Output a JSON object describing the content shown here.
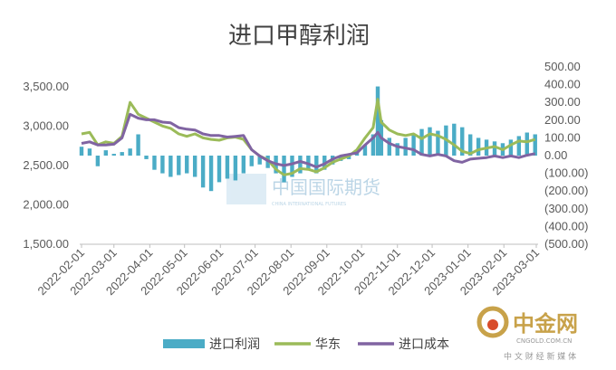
{
  "chart_data": {
    "type": "bar+line",
    "title": "进口甲醇利润",
    "left_axis": {
      "ylim": [
        1500,
        3750
      ],
      "ticks": [
        1500,
        2000,
        2500,
        3000,
        3500
      ],
      "tick_labels": [
        "1,500.00",
        "2,000.00",
        "2,500.00",
        "3,000.00",
        "3,500.00"
      ]
    },
    "right_axis": {
      "ylim": [
        -500,
        500
      ],
      "ticks": [
        500,
        400,
        300,
        200,
        100,
        0,
        -100,
        -200,
        -300,
        -400,
        -500
      ],
      "tick_labels": [
        "500.00",
        "400.00",
        "300.00",
        "200.00",
        "100.00",
        "0.00",
        "(100.00)",
        "(200.00)",
        "(300.00)",
        "(400.00)",
        "(500.00)"
      ]
    },
    "x_axis": {
      "start": "2022-02-01",
      "end": "2023-03-01",
      "tick_labels": [
        "2022-02-01",
        "2022-03-01",
        "2022-04-01",
        "2022-05-01",
        "2022-06-01",
        "2022-07-01",
        "2022-08-01",
        "2022-09-01",
        "2022-10-01",
        "2022-11-01",
        "2022-12-01",
        "2023-01-01",
        "2023-02-01",
        "2023-03-01"
      ]
    },
    "series": [
      {
        "name": "进口利润",
        "type": "bar",
        "axis": "right",
        "color": "#4BACC6",
        "points": [
          [
            "2022-02-01",
            50
          ],
          [
            "2022-02-08",
            40
          ],
          [
            "2022-02-15",
            -60
          ],
          [
            "2022-02-22",
            30
          ],
          [
            "2022-03-01",
            10
          ],
          [
            "2022-03-08",
            20
          ],
          [
            "2022-03-15",
            40
          ],
          [
            "2022-03-22",
            120
          ],
          [
            "2022-03-29",
            -20
          ],
          [
            "2022-04-05",
            -80
          ],
          [
            "2022-04-12",
            -100
          ],
          [
            "2022-04-19",
            -120
          ],
          [
            "2022-04-26",
            -110
          ],
          [
            "2022-05-03",
            -100
          ],
          [
            "2022-05-10",
            -120
          ],
          [
            "2022-05-17",
            -180
          ],
          [
            "2022-05-24",
            -200
          ],
          [
            "2022-05-31",
            -150
          ],
          [
            "2022-06-07",
            -130
          ],
          [
            "2022-06-14",
            -140
          ],
          [
            "2022-06-21",
            -100
          ],
          [
            "2022-06-28",
            -60
          ],
          [
            "2022-07-05",
            -50
          ],
          [
            "2022-07-12",
            -70
          ],
          [
            "2022-07-19",
            -100
          ],
          [
            "2022-07-26",
            -150
          ],
          [
            "2022-08-02",
            -120
          ],
          [
            "2022-08-09",
            -100
          ],
          [
            "2022-08-16",
            -80
          ],
          [
            "2022-08-23",
            -100
          ],
          [
            "2022-08-30",
            -80
          ],
          [
            "2022-09-06",
            -50
          ],
          [
            "2022-09-13",
            -30
          ],
          [
            "2022-09-20",
            -20
          ],
          [
            "2022-09-27",
            20
          ],
          [
            "2022-10-04",
            60
          ],
          [
            "2022-10-11",
            120
          ],
          [
            "2022-10-15",
            390
          ],
          [
            "2022-10-18",
            200
          ],
          [
            "2022-10-25",
            100
          ],
          [
            "2022-11-01",
            70
          ],
          [
            "2022-11-08",
            100
          ],
          [
            "2022-11-15",
            120
          ],
          [
            "2022-11-22",
            150
          ],
          [
            "2022-11-29",
            160
          ],
          [
            "2022-12-06",
            140
          ],
          [
            "2022-12-13",
            170
          ],
          [
            "2022-12-20",
            180
          ],
          [
            "2022-12-27",
            160
          ],
          [
            "2023-01-03",
            120
          ],
          [
            "2023-01-10",
            100
          ],
          [
            "2023-01-17",
            90
          ],
          [
            "2023-01-24",
            80
          ],
          [
            "2023-01-31",
            70
          ],
          [
            "2023-02-07",
            90
          ],
          [
            "2023-02-14",
            110
          ],
          [
            "2023-02-21",
            130
          ],
          [
            "2023-02-28",
            120
          ]
        ]
      },
      {
        "name": "华东",
        "type": "line",
        "axis": "left",
        "color": "#9BBB59",
        "points": [
          [
            "2022-02-01",
            2900
          ],
          [
            "2022-02-08",
            2920
          ],
          [
            "2022-02-15",
            2760
          ],
          [
            "2022-02-22",
            2800
          ],
          [
            "2022-03-01",
            2780
          ],
          [
            "2022-03-08",
            2870
          ],
          [
            "2022-03-15",
            3300
          ],
          [
            "2022-03-22",
            3150
          ],
          [
            "2022-03-29",
            3100
          ],
          [
            "2022-04-05",
            3050
          ],
          [
            "2022-04-12",
            3000
          ],
          [
            "2022-04-19",
            2970
          ],
          [
            "2022-04-26",
            2900
          ],
          [
            "2022-05-03",
            2870
          ],
          [
            "2022-05-10",
            2900
          ],
          [
            "2022-05-17",
            2850
          ],
          [
            "2022-05-24",
            2830
          ],
          [
            "2022-05-31",
            2820
          ],
          [
            "2022-06-07",
            2850
          ],
          [
            "2022-06-14",
            2860
          ],
          [
            "2022-06-21",
            2830
          ],
          [
            "2022-06-28",
            2700
          ],
          [
            "2022-07-05",
            2620
          ],
          [
            "2022-07-12",
            2570
          ],
          [
            "2022-07-19",
            2450
          ],
          [
            "2022-07-26",
            2380
          ],
          [
            "2022-08-02",
            2400
          ],
          [
            "2022-08-09",
            2460
          ],
          [
            "2022-08-16",
            2450
          ],
          [
            "2022-08-23",
            2420
          ],
          [
            "2022-08-30",
            2470
          ],
          [
            "2022-09-06",
            2540
          ],
          [
            "2022-09-13",
            2580
          ],
          [
            "2022-09-20",
            2620
          ],
          [
            "2022-09-27",
            2700
          ],
          [
            "2022-10-04",
            2850
          ],
          [
            "2022-10-11",
            2980
          ],
          [
            "2022-10-15",
            3340
          ],
          [
            "2022-10-18",
            3050
          ],
          [
            "2022-10-25",
            2950
          ],
          [
            "2022-11-01",
            2900
          ],
          [
            "2022-11-08",
            2880
          ],
          [
            "2022-11-15",
            2900
          ],
          [
            "2022-11-22",
            2840
          ],
          [
            "2022-11-29",
            2900
          ],
          [
            "2022-12-06",
            2880
          ],
          [
            "2022-12-13",
            2830
          ],
          [
            "2022-12-20",
            2760
          ],
          [
            "2022-12-27",
            2680
          ],
          [
            "2023-01-03",
            2650
          ],
          [
            "2023-01-10",
            2700
          ],
          [
            "2023-01-17",
            2720
          ],
          [
            "2023-01-24",
            2740
          ],
          [
            "2023-01-31",
            2700
          ],
          [
            "2023-02-07",
            2760
          ],
          [
            "2023-02-14",
            2810
          ],
          [
            "2023-02-21",
            2800
          ],
          [
            "2023-02-28",
            2830
          ]
        ]
      },
      {
        "name": "进口成本",
        "type": "line",
        "axis": "left",
        "color": "#8064A2",
        "points": [
          [
            "2022-02-01",
            2780
          ],
          [
            "2022-02-08",
            2800
          ],
          [
            "2022-02-15",
            2760
          ],
          [
            "2022-02-22",
            2760
          ],
          [
            "2022-03-01",
            2770
          ],
          [
            "2022-03-08",
            2850
          ],
          [
            "2022-03-15",
            3150
          ],
          [
            "2022-03-22",
            3100
          ],
          [
            "2022-03-29",
            3080
          ],
          [
            "2022-04-05",
            3080
          ],
          [
            "2022-04-12",
            3050
          ],
          [
            "2022-04-19",
            3040
          ],
          [
            "2022-04-26",
            2980
          ],
          [
            "2022-05-03",
            2960
          ],
          [
            "2022-05-10",
            2950
          ],
          [
            "2022-05-17",
            2900
          ],
          [
            "2022-05-24",
            2880
          ],
          [
            "2022-05-31",
            2880
          ],
          [
            "2022-06-07",
            2860
          ],
          [
            "2022-06-14",
            2870
          ],
          [
            "2022-06-21",
            2880
          ],
          [
            "2022-06-28",
            2700
          ],
          [
            "2022-07-05",
            2620
          ],
          [
            "2022-07-12",
            2560
          ],
          [
            "2022-07-19",
            2520
          ],
          [
            "2022-07-26",
            2500
          ],
          [
            "2022-08-02",
            2520
          ],
          [
            "2022-08-09",
            2550
          ],
          [
            "2022-08-16",
            2520
          ],
          [
            "2022-08-23",
            2480
          ],
          [
            "2022-08-30",
            2520
          ],
          [
            "2022-09-06",
            2580
          ],
          [
            "2022-09-13",
            2620
          ],
          [
            "2022-09-20",
            2640
          ],
          [
            "2022-09-27",
            2660
          ],
          [
            "2022-10-04",
            2760
          ],
          [
            "2022-10-11",
            2850
          ],
          [
            "2022-10-15",
            2920
          ],
          [
            "2022-10-18",
            2850
          ],
          [
            "2022-10-25",
            2780
          ],
          [
            "2022-11-01",
            2740
          ],
          [
            "2022-11-08",
            2720
          ],
          [
            "2022-11-15",
            2700
          ],
          [
            "2022-11-22",
            2640
          ],
          [
            "2022-11-29",
            2620
          ],
          [
            "2022-12-06",
            2640
          ],
          [
            "2022-12-13",
            2620
          ],
          [
            "2022-12-20",
            2560
          ],
          [
            "2022-12-27",
            2540
          ],
          [
            "2023-01-03",
            2580
          ],
          [
            "2023-01-10",
            2590
          ],
          [
            "2023-01-17",
            2600
          ],
          [
            "2023-01-24",
            2620
          ],
          [
            "2023-01-31",
            2600
          ],
          [
            "2023-02-07",
            2620
          ],
          [
            "2023-02-14",
            2600
          ],
          [
            "2023-02-21",
            2630
          ],
          [
            "2023-02-28",
            2650
          ]
        ]
      }
    ],
    "legend": {
      "placement": "bottom",
      "entries": [
        "进口利润",
        "华东",
        "进口成本"
      ]
    },
    "grid": false
  },
  "watermark": {
    "text": "中国国际期货",
    "subtext": "CHINA INTERNATIONAL FUTURES"
  },
  "logo": {
    "name": "中金网",
    "domain": "CNGOLD.COM.CN",
    "slogan": "中 文 财 经 新 媒 体",
    "colors": {
      "primary": "#C8A24A",
      "accent": "#D84C2B"
    }
  }
}
